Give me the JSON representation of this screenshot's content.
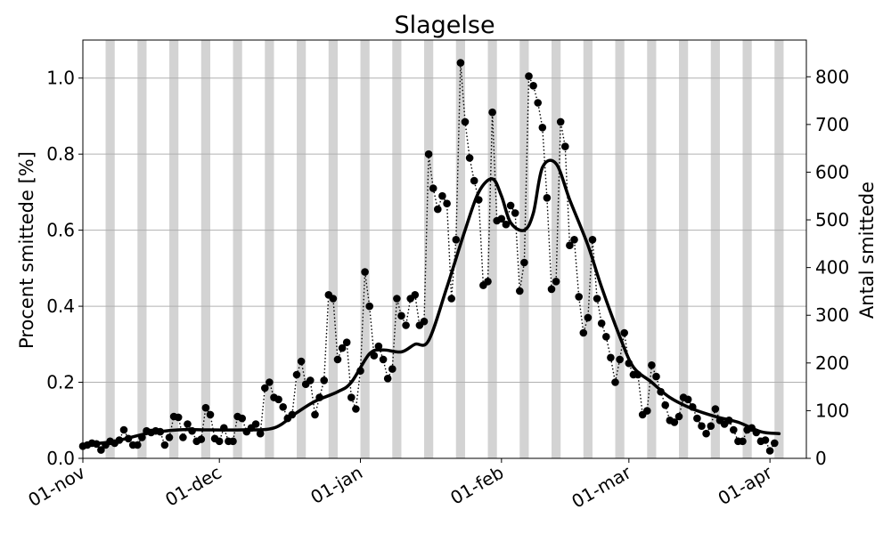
{
  "chart_data": {
    "type": "line",
    "title": "Slagelse",
    "ylabel": "Procent smittede [%]",
    "y2label": "Antal smittede",
    "ylim": [
      0,
      1.1
    ],
    "y2lim": [
      0,
      877
    ],
    "xlim": [
      "2021-11-01",
      "2022-04-09"
    ],
    "yticks": [
      "0.0",
      "0.2",
      "0.4",
      "0.6",
      "0.8",
      "1.0"
    ],
    "y2ticks": [
      "0",
      "100",
      "200",
      "300",
      "400",
      "500",
      "600",
      "700",
      "800"
    ],
    "xticks": [
      {
        "date": "2021-11-01",
        "label": "01-nov"
      },
      {
        "date": "2021-12-01",
        "label": "01-dec"
      },
      {
        "date": "2022-01-01",
        "label": "01-jan"
      },
      {
        "date": "2022-02-01",
        "label": "01-feb"
      },
      {
        "date": "2022-03-01",
        "label": "01-mar"
      },
      {
        "date": "2022-04-01",
        "label": "01-apr"
      }
    ],
    "grid": "horizontal",
    "weekend_shading": true,
    "colors": {
      "line": "#000000",
      "weekend": "#d3d3d3",
      "grid": "#b0b0b0"
    },
    "series": [
      {
        "kind": "daily",
        "start": "2021-11-01",
        "values": [
          0.032,
          0.035,
          0.04,
          0.038,
          0.022,
          0.035,
          0.045,
          0.04,
          0.048,
          0.075,
          0.052,
          0.035,
          0.035,
          0.055,
          0.072,
          0.068,
          0.072,
          0.07,
          0.035,
          0.055,
          0.11,
          0.108,
          0.055,
          0.09,
          0.072,
          0.045,
          0.05,
          0.133,
          0.115,
          0.052,
          0.045,
          0.08,
          0.045,
          0.045,
          0.11,
          0.105,
          0.07,
          0.08,
          0.09,
          0.065,
          0.185,
          0.2,
          0.16,
          0.155,
          0.135,
          0.105,
          0.115,
          0.22,
          0.255,
          0.195,
          0.205,
          0.115,
          0.16,
          0.205,
          0.43,
          0.42,
          0.26,
          0.29,
          0.305,
          0.16,
          0.13,
          0.23,
          0.49,
          0.4,
          0.27,
          0.295,
          0.26,
          0.21,
          0.235,
          0.42,
          0.375,
          0.35,
          0.42,
          0.43,
          0.35,
          0.36,
          0.8,
          0.71,
          0.655,
          0.69,
          0.67,
          0.42,
          0.575,
          1.04,
          0.885,
          0.79,
          0.73,
          0.68,
          0.455,
          0.465,
          0.91,
          0.625,
          0.63,
          0.615,
          0.665,
          0.645,
          0.44,
          0.515,
          1.005,
          0.98,
          0.935,
          0.87,
          0.685,
          0.445,
          0.465,
          0.885,
          0.82,
          0.56,
          0.575,
          0.425,
          0.33,
          0.37,
          0.575,
          0.42,
          0.355,
          0.32,
          0.265,
          0.2,
          0.26,
          0.33,
          0.25,
          0.22,
          0.22,
          0.115,
          0.125,
          0.245,
          0.215,
          0.175,
          0.14,
          0.1,
          0.095,
          0.11,
          0.16,
          0.155,
          0.135,
          0.105,
          0.085,
          0.065,
          0.085,
          0.13,
          0.1,
          0.09,
          0.1,
          0.075,
          0.045,
          0.045,
          0.075,
          0.08,
          0.068,
          0.045,
          0.048,
          0.02,
          0.04
        ]
      },
      {
        "kind": "smoothed",
        "x": [
          "2021-11-01",
          "2021-11-08",
          "2021-11-15",
          "2021-11-22",
          "2021-11-29",
          "2021-12-06",
          "2021-12-13",
          "2021-12-18",
          "2021-12-22",
          "2021-12-27",
          "2021-12-30",
          "2022-01-03",
          "2022-01-06",
          "2022-01-10",
          "2022-01-13",
          "2022-01-16",
          "2022-01-20",
          "2022-01-24",
          "2022-01-27",
          "2022-01-30",
          "2022-02-01",
          "2022-02-03",
          "2022-02-06",
          "2022-02-08",
          "2022-02-10",
          "2022-02-13",
          "2022-02-16",
          "2022-02-20",
          "2022-02-23",
          "2022-02-27",
          "2022-03-02",
          "2022-03-06",
          "2022-03-10",
          "2022-03-15",
          "2022-03-20",
          "2022-03-25",
          "2022-03-30",
          "2022-04-03"
        ],
        "values": [
          0.035,
          0.045,
          0.065,
          0.075,
          0.075,
          0.075,
          0.08,
          0.12,
          0.15,
          0.175,
          0.2,
          0.275,
          0.285,
          0.28,
          0.3,
          0.31,
          0.45,
          0.6,
          0.7,
          0.735,
          0.69,
          0.62,
          0.6,
          0.645,
          0.765,
          0.775,
          0.68,
          0.56,
          0.45,
          0.32,
          0.24,
          0.2,
          0.16,
          0.13,
          0.11,
          0.095,
          0.07,
          0.065
        ]
      }
    ]
  }
}
